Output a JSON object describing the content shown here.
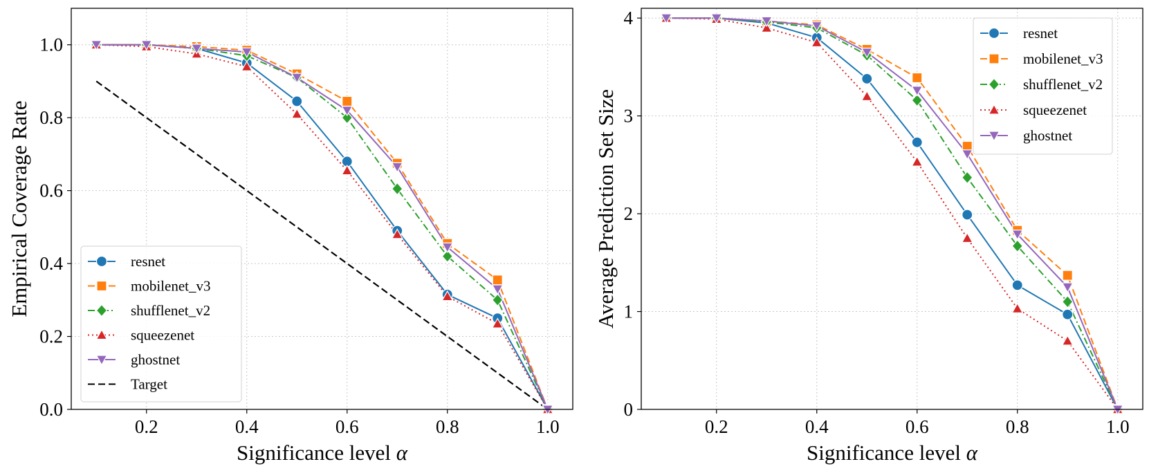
{
  "chart_data": [
    {
      "type": "line",
      "id": "coverage",
      "xlabel": "Significance level",
      "xlabel_symbol": "α",
      "ylabel": "Empirical Coverage Rate",
      "xlim": [
        0.05,
        1.05
      ],
      "ylim": [
        0.0,
        1.1
      ],
      "xticks": [
        0.2,
        0.4,
        0.6,
        0.8,
        1.0
      ],
      "xtick_labels": [
        "0.2",
        "0.4",
        "0.6",
        "0.8",
        "1.0"
      ],
      "yticks": [
        0.0,
        0.2,
        0.4,
        0.6,
        0.8,
        1.0
      ],
      "ytick_labels": [
        "0.0",
        "0.2",
        "0.4",
        "0.6",
        "0.8",
        "1.0"
      ],
      "grid": true,
      "legend_position": "lower-left",
      "x": [
        0.1,
        0.2,
        0.3,
        0.4,
        0.5,
        0.6,
        0.7,
        0.8,
        0.9,
        1.0
      ],
      "series": [
        {
          "name": "resnet",
          "color": "#1f77b4",
          "marker": "circle",
          "dash": "solid",
          "values": [
            1.0,
            1.0,
            0.99,
            0.95,
            0.845,
            0.68,
            0.49,
            0.315,
            0.25,
            0.0
          ]
        },
        {
          "name": "mobilenet_v3",
          "color": "#ff7f0e",
          "marker": "square",
          "dash": "dashed",
          "values": [
            1.0,
            1.0,
            0.995,
            0.985,
            0.92,
            0.845,
            0.675,
            0.455,
            0.355,
            0.0
          ]
        },
        {
          "name": "shufflenet_v2",
          "color": "#2ca02c",
          "marker": "diamond",
          "dash": "dashdot",
          "values": [
            1.0,
            1.0,
            0.99,
            0.97,
            0.91,
            0.8,
            0.605,
            0.42,
            0.3,
            0.0
          ]
        },
        {
          "name": "squeezenet",
          "color": "#d62728",
          "marker": "triangle-up",
          "dash": "dotted",
          "values": [
            1.0,
            0.995,
            0.975,
            0.94,
            0.81,
            0.655,
            0.48,
            0.31,
            0.235,
            0.0
          ]
        },
        {
          "name": "ghostnet",
          "color": "#9467bd",
          "marker": "triangle-down",
          "dash": "solid",
          "values": [
            1.0,
            1.0,
            0.99,
            0.98,
            0.91,
            0.82,
            0.665,
            0.445,
            0.33,
            0.0
          ]
        },
        {
          "name": "Target",
          "color": "#000000",
          "marker": "none",
          "dash": "dashed",
          "values": [
            0.9,
            0.8,
            0.7,
            0.6,
            0.5,
            0.4,
            0.3,
            0.2,
            0.1,
            0.0
          ]
        }
      ]
    },
    {
      "type": "line",
      "id": "setsize",
      "xlabel": "Significance level",
      "xlabel_symbol": "α",
      "ylabel": "Average Prediction Set Size",
      "xlim": [
        0.05,
        1.05
      ],
      "ylim": [
        0.0,
        4.1
      ],
      "xticks": [
        0.2,
        0.4,
        0.6,
        0.8,
        1.0
      ],
      "xtick_labels": [
        "0.2",
        "0.4",
        "0.6",
        "0.8",
        "1.0"
      ],
      "yticks": [
        0,
        1,
        2,
        3,
        4
      ],
      "ytick_labels": [
        "0",
        "1",
        "2",
        "3",
        "4"
      ],
      "grid": true,
      "legend_position": "top-right",
      "x": [
        0.1,
        0.2,
        0.3,
        0.4,
        0.5,
        0.6,
        0.7,
        0.8,
        0.9,
        1.0
      ],
      "series": [
        {
          "name": "resnet",
          "color": "#1f77b4",
          "marker": "circle",
          "dash": "solid",
          "values": [
            4.0,
            4.0,
            3.95,
            3.8,
            3.38,
            2.73,
            1.99,
            1.27,
            0.97,
            0.0
          ]
        },
        {
          "name": "mobilenet_v3",
          "color": "#ff7f0e",
          "marker": "square",
          "dash": "dashed",
          "values": [
            4.0,
            4.0,
            3.97,
            3.93,
            3.68,
            3.39,
            2.69,
            1.83,
            1.37,
            0.0
          ]
        },
        {
          "name": "shufflenet_v2",
          "color": "#2ca02c",
          "marker": "diamond",
          "dash": "dashdot",
          "values": [
            4.0,
            4.0,
            3.96,
            3.9,
            3.62,
            3.16,
            2.37,
            1.67,
            1.1,
            0.0
          ]
        },
        {
          "name": "squeezenet",
          "color": "#d62728",
          "marker": "triangle-up",
          "dash": "dotted",
          "values": [
            4.0,
            3.99,
            3.9,
            3.75,
            3.2,
            2.53,
            1.75,
            1.03,
            0.7,
            0.0
          ]
        },
        {
          "name": "ghostnet",
          "color": "#9467bd",
          "marker": "triangle-down",
          "dash": "solid",
          "values": [
            4.0,
            4.0,
            3.97,
            3.92,
            3.65,
            3.26,
            2.61,
            1.79,
            1.25,
            0.0
          ]
        }
      ]
    }
  ]
}
